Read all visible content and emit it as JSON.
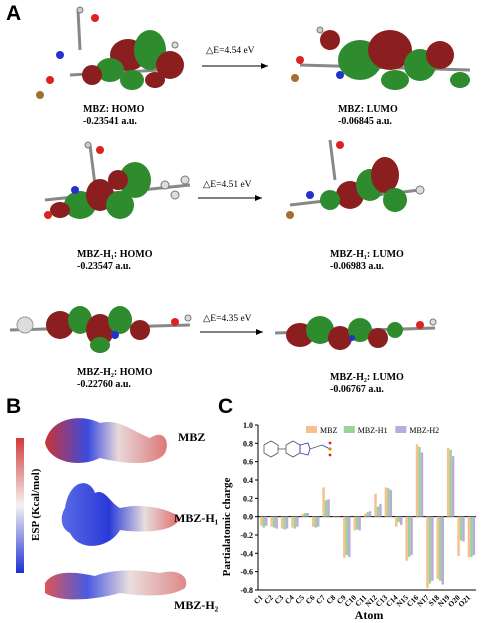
{
  "panels": {
    "a": "A",
    "b": "B",
    "c": "C"
  },
  "panel_a": {
    "rows": [
      {
        "gap": "△E=4.54 eV",
        "homo_name": "MBZ: HOMO",
        "homo_energy": "-0.23541 a.u.",
        "lumo_name": "MBZ: LUMO",
        "lumo_energy": "-0.06845 a.u."
      },
      {
        "gap": "△E=4.51 eV",
        "homo_name": "MBZ-H₁: HOMO",
        "homo_energy": "-0.23547 a.u.",
        "lumo_name": "MBZ-H₁: LUMO",
        "lumo_energy": "-0.06983 a.u."
      },
      {
        "gap": "△E=4.35 eV",
        "homo_name": "MBZ-H₂: HOMO",
        "homo_energy": "-0.22760 a.u.",
        "lumo_name": "MBZ-H₂: LUMO",
        "lumo_energy": "-0.06767 a.u."
      }
    ]
  },
  "panel_b": {
    "axis_label": "ESP (Kcal/mol)",
    "labels": [
      "MBZ",
      "MBZ-H₁",
      "MBZ-H₂"
    ],
    "colors": {
      "negative": "#1f2fd6",
      "neutral": "#f3f3f3",
      "positive": "#d23a3a"
    }
  },
  "chart_data": {
    "type": "bar",
    "ylabel": "Partialatomic charge",
    "xlabel": "Atom",
    "ylim": [
      -0.8,
      1.0
    ],
    "yticks": [
      "1.0",
      "0.8",
      "0.6",
      "0.4",
      "0.2",
      "0.0",
      "-0.2",
      "-0.4",
      "-0.6",
      "-0.8"
    ],
    "categories": [
      "C1",
      "C2",
      "C3",
      "C4",
      "C5",
      "C6",
      "C7",
      "C8",
      "C9",
      "C10",
      "C11",
      "N12",
      "C13",
      "C14",
      "N15",
      "C16",
      "N17",
      "S18",
      "N19",
      "O20",
      "O21"
    ],
    "legend_position": "top-right",
    "series": [
      {
        "name": "MBZ",
        "color": "#f7c08c",
        "values": [
          -0.1,
          -0.11,
          -0.13,
          -0.12,
          0.03,
          -0.11,
          0.32,
          -0.01,
          -0.45,
          -0.15,
          0.03,
          0.25,
          0.32,
          -0.11,
          -0.48,
          0.79,
          -0.78,
          -0.68,
          0.75,
          -0.43,
          -0.44
        ]
      },
      {
        "name": "MBZ-H1",
        "color": "#9bd29b",
        "values": [
          -0.12,
          -0.12,
          -0.14,
          -0.13,
          0.04,
          -0.12,
          0.18,
          -0.01,
          -0.42,
          -0.14,
          0.05,
          0.11,
          0.31,
          -0.06,
          -0.44,
          0.76,
          -0.73,
          -0.7,
          0.73,
          -0.26,
          -0.44
        ]
      },
      {
        "name": "MBZ-H2",
        "color": "#b8acdc",
        "values": [
          -0.1,
          -0.13,
          -0.13,
          -0.11,
          0.04,
          -0.11,
          0.19,
          -0.01,
          -0.44,
          -0.15,
          0.06,
          0.14,
          0.29,
          -0.09,
          -0.42,
          0.7,
          -0.7,
          -0.74,
          0.66,
          -0.27,
          -0.42
        ]
      }
    ]
  }
}
